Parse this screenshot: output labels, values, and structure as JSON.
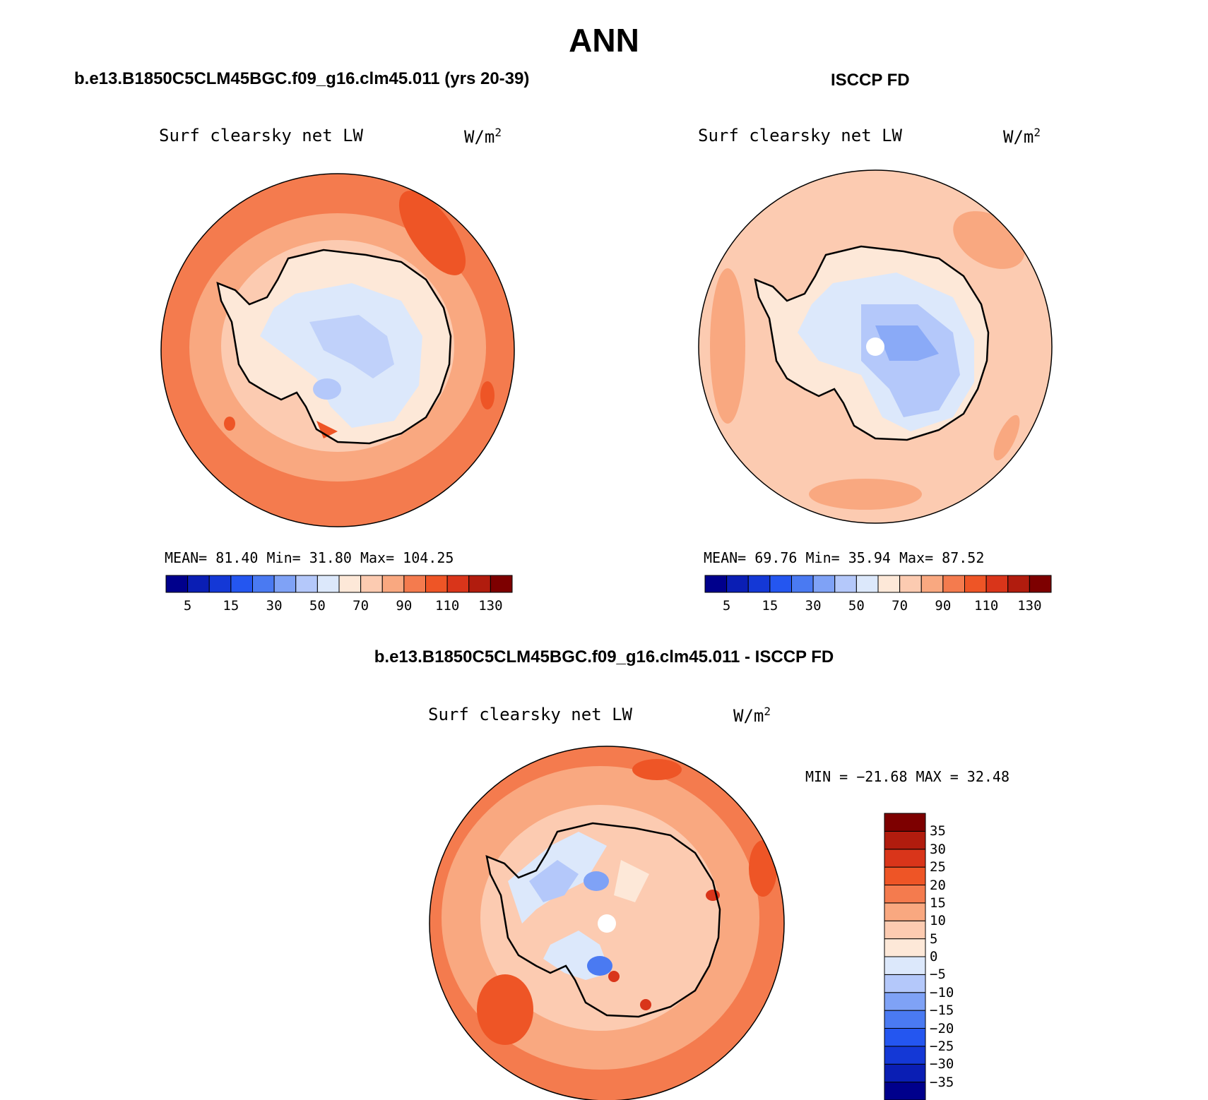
{
  "main_title": "ANN",
  "left_title": "b.e13.B1850C5CLM45BGC.f09_g16.clm45.011 (yrs 20-39)",
  "right_title": "ISCCP FD",
  "diff_title": "b.e13.B1850C5CLM45BGC.f09_g16.clm45.011 - ISCCP FD",
  "panels": [
    {
      "variable": "Surf clearsky net LW",
      "units_base": "W/m",
      "units_sup": "2",
      "stats": "MEAN=   81.40   Min=   31.80   Max=  104.25"
    },
    {
      "variable": "Surf clearsky net LW",
      "units_base": "W/m",
      "units_sup": "2",
      "stats": "MEAN=   69.76   Min=   35.94   Max=   87.52"
    },
    {
      "variable": "Surf clearsky net LW",
      "units_base": "W/m",
      "units_sup": "2",
      "stats": "MIN = −21.68 MAX =   32.48"
    }
  ],
  "abs_colorbar": {
    "colors": [
      "#00008c",
      "#0a1eb4",
      "#1438d6",
      "#2456f0",
      "#4a7af2",
      "#7fa2f6",
      "#b4c8fa",
      "#dce8fb",
      "#fde8d8",
      "#fccbb1",
      "#f9a880",
      "#f47b4e",
      "#ee5526",
      "#d9351a",
      "#b11c0e",
      "#7d0000"
    ],
    "labels": [
      "5",
      "15",
      "30",
      "50",
      "70",
      "90",
      "110",
      "130"
    ]
  },
  "diff_colorbar": {
    "colors": [
      "#00008c",
      "#0a1eb4",
      "#1438d6",
      "#2456f0",
      "#4a7af2",
      "#7fa2f6",
      "#b4c8fa",
      "#dce8fb",
      "#fde8d8",
      "#fccbb1",
      "#f9a880",
      "#f47b4e",
      "#ee5526",
      "#d9351a",
      "#b11c0e",
      "#7d0000"
    ],
    "labels": [
      "−35",
      "−30",
      "−25",
      "−20",
      "−15",
      "−10",
      "−5",
      "0",
      "5",
      "10",
      "15",
      "20",
      "25",
      "30",
      "35"
    ]
  }
}
